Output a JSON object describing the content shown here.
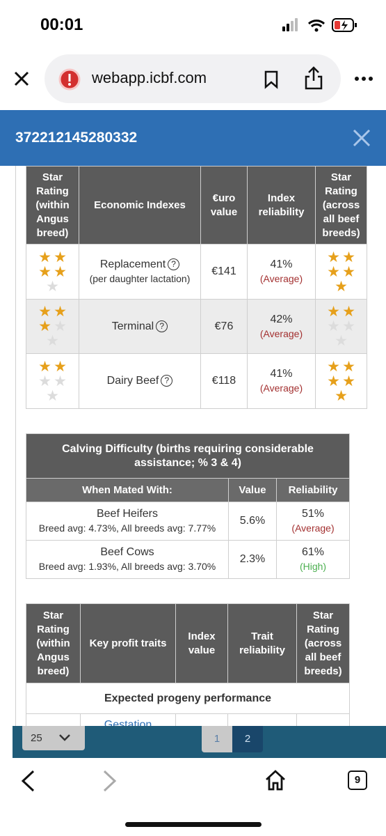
{
  "status_bar": {
    "time": "00:01"
  },
  "browser": {
    "url": "webapp.icbf.com",
    "tab_count": 9
  },
  "header": {
    "title": "372212145280332"
  },
  "economic_table": {
    "headers": [
      "Star Rating (within Angus breed)",
      "Economic Indexes",
      "€uro value",
      "Index reliability",
      "Star Rating (across all beef breeds)"
    ],
    "rows": [
      {
        "stars_within": 4,
        "index": "Replacement",
        "note": "(per daughter lactation)",
        "value": "€141",
        "reliability": "41%",
        "reliability_label": "(Average)",
        "stars_across": 5
      },
      {
        "stars_within": 3,
        "index": "Terminal",
        "value": "€76",
        "reliability": "42%",
        "reliability_label": "(Average)",
        "stars_across": 2
      },
      {
        "stars_within": 2,
        "index": "Dairy Beef",
        "value": "€118",
        "reliability": "41%",
        "reliability_label": "(Average)",
        "stars_across": 5
      }
    ]
  },
  "calving_table": {
    "title": "Calving Difficulty (births requiring considerable assistance; % 3 & 4)",
    "headers": [
      "When Mated With:",
      "Value",
      "Reliability"
    ],
    "rows": [
      {
        "mated_with": "Beef Heifers",
        "averages": "Breed avg: 4.73%, All breeds avg: 7.77%",
        "value": "5.6%",
        "reliability": "51%",
        "reliability_label": "(Average)"
      },
      {
        "mated_with": "Beef Cows",
        "averages": "Breed avg: 1.93%, All breeds avg: 3.70%",
        "value": "2.3%",
        "reliability": "61%",
        "reliability_label": "(High)"
      }
    ]
  },
  "traits_table": {
    "headers": [
      "Star Rating (within Angus breed)",
      "Key profit traits",
      "Index value",
      "Trait reliability",
      "Star Rating (across all beef breeds)"
    ],
    "section": "Expected progeny performance",
    "first_trait": "Gestation"
  },
  "pagination": {
    "page_size": 25,
    "pages": [
      1,
      2
    ]
  }
}
